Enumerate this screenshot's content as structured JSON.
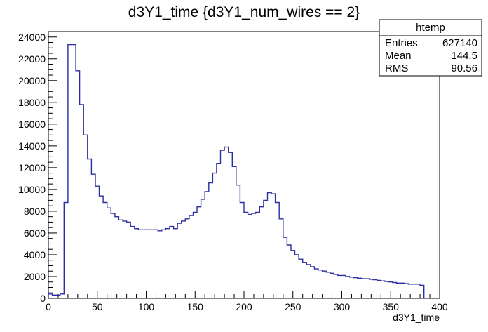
{
  "chart_data": {
    "type": "histogram",
    "title": "d3Y1_time {d3Y1_num_wires == 2}",
    "xlabel": "d3Y1_time",
    "ylabel": "",
    "xlim": [
      0,
      400
    ],
    "ylim": [
      0,
      24500
    ],
    "xticks": [
      0,
      50,
      100,
      150,
      200,
      250,
      300,
      350,
      400
    ],
    "xtick_labels": [
      "0",
      "50",
      "100",
      "150",
      "200",
      "250",
      "300",
      "350",
      "400"
    ],
    "yticks": [
      0,
      2000,
      4000,
      6000,
      8000,
      10000,
      12000,
      14000,
      16000,
      18000,
      20000,
      22000,
      24000
    ],
    "ytick_labels": [
      "0",
      "2000",
      "4000",
      "6000",
      "8000",
      "10000",
      "12000",
      "14000",
      "16000",
      "18000",
      "20000",
      "22000",
      "24000"
    ],
    "grid": false,
    "line_color": "#2b2fa0",
    "stats_box": {
      "name": "htemp",
      "rows": [
        {
          "label": "Entries",
          "value": "627140"
        },
        {
          "label": "Mean",
          "value": "144.5"
        },
        {
          "label": "RMS",
          "value": "90.56"
        }
      ]
    },
    "bin_edges_start": 0,
    "bin_width": 4,
    "values": [
      400,
      300,
      300,
      400,
      8800,
      23300,
      23300,
      20900,
      17800,
      15000,
      12800,
      11400,
      10300,
      9400,
      8800,
      8300,
      7800,
      7500,
      7200,
      7100,
      7000,
      6600,
      6400,
      6300,
      6300,
      6300,
      6300,
      6300,
      6200,
      6300,
      6400,
      6600,
      6400,
      6900,
      7100,
      7300,
      7600,
      7900,
      8400,
      9100,
      9800,
      10600,
      11500,
      12400,
      13600,
      13900,
      13400,
      12100,
      10400,
      8800,
      7900,
      7700,
      7800,
      7900,
      8400,
      9000,
      9700,
      9600,
      8800,
      7300,
      5600,
      4900,
      4400,
      4000,
      3600,
      3300,
      3100,
      2900,
      2700,
      2600,
      2500,
      2400,
      2300,
      2200,
      2100,
      2100,
      2000,
      1950,
      1900,
      1850,
      1800,
      1800,
      1750,
      1700,
      1650,
      1600,
      1550,
      1500,
      1450,
      1400,
      1400,
      1350,
      1300,
      1300,
      1300,
      1200
    ]
  }
}
